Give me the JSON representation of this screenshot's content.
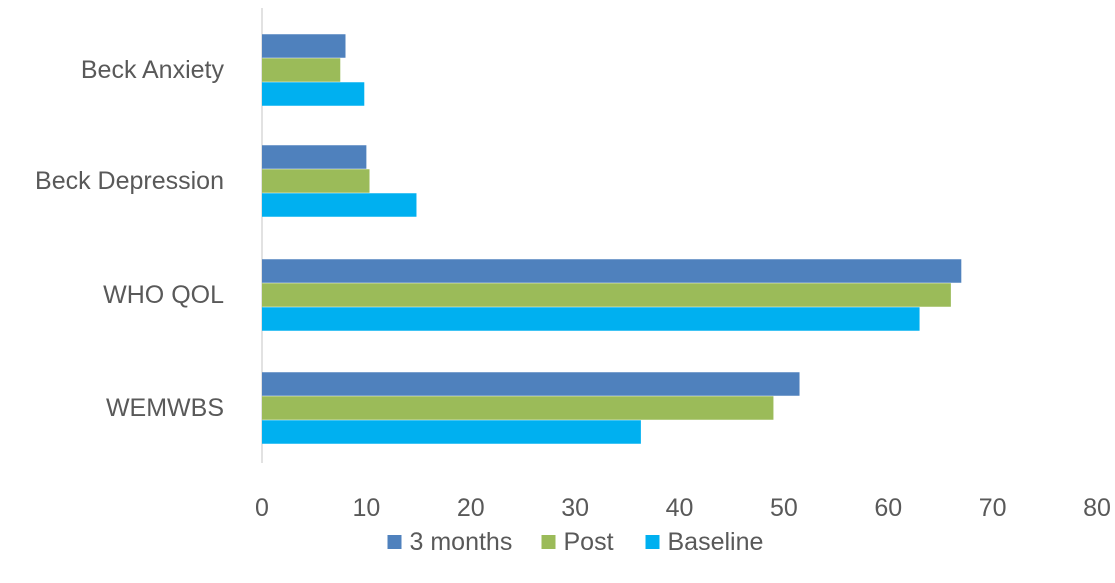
{
  "chart_data": {
    "type": "bar",
    "orientation": "horizontal",
    "categories": [
      "Beck Anxiety",
      "Beck Depression",
      "WHO QOL",
      "WEMWBS"
    ],
    "series": [
      {
        "name": "3 months",
        "color": "#4f81bd",
        "values": [
          8,
          10,
          67,
          51.5
        ]
      },
      {
        "name": "Post",
        "color": "#9bbb59",
        "values": [
          7.5,
          10.3,
          66,
          49
        ]
      },
      {
        "name": "Baseline",
        "color": "#00b0f0",
        "values": [
          9.8,
          14.8,
          63,
          36.3
        ]
      }
    ],
    "xlim": [
      0,
      80
    ],
    "xticks": [
      "0",
      "10",
      "20",
      "30",
      "40",
      "50",
      "60",
      "70",
      "80"
    ],
    "grid": false,
    "legend_position": "bottom",
    "title": "",
    "xlabel": "",
    "ylabel": ""
  }
}
